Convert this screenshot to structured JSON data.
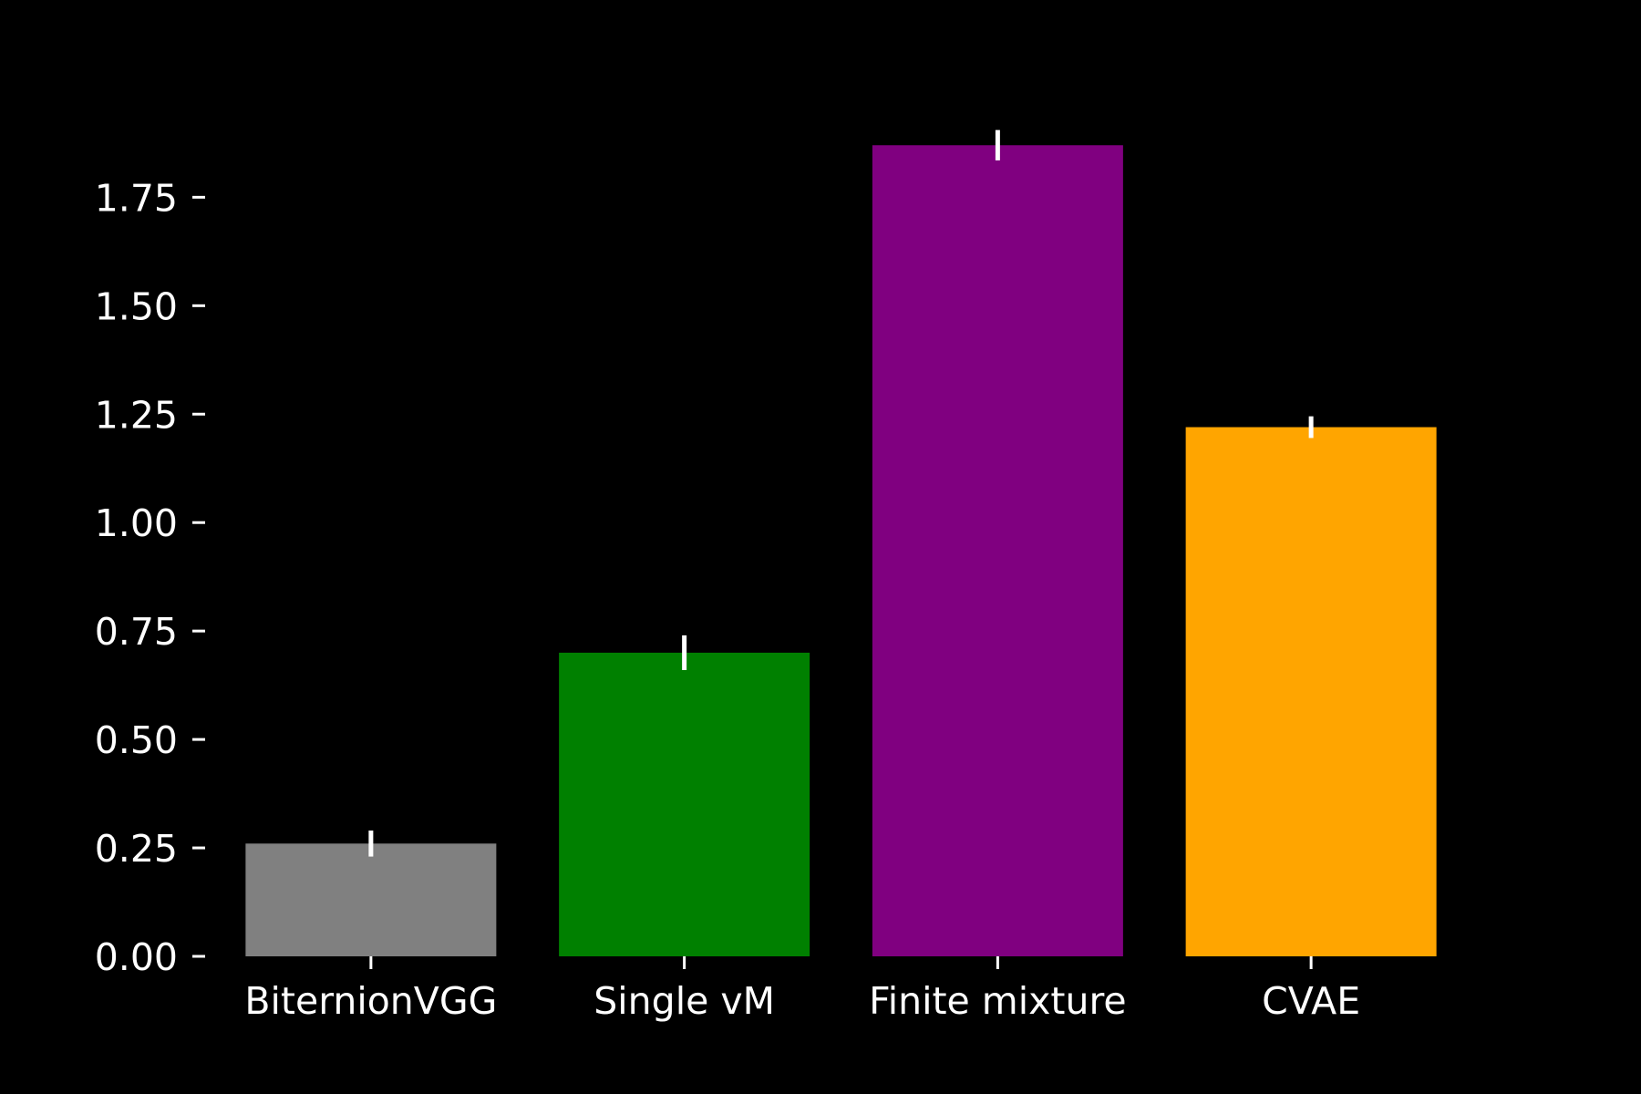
{
  "chart_data": {
    "type": "bar",
    "title": "",
    "xlabel": "",
    "ylabel": "",
    "categories": [
      "BiternionVGG",
      "Single vM",
      "Finite mixture",
      "CVAE"
    ],
    "values": [
      0.26,
      0.7,
      1.87,
      1.22
    ],
    "errors": [
      0.03,
      0.04,
      0.035,
      0.025
    ],
    "colors": [
      "#808080",
      "#008000",
      "#800080",
      "#ffa500"
    ],
    "error_color": "#ffffff",
    "background": "#000000",
    "ylim": [
      0,
      1.9
    ],
    "yticks": [
      0.0,
      0.25,
      0.5,
      0.75,
      1.0,
      1.25,
      1.5,
      1.75
    ],
    "ytick_labels": [
      "0.00",
      "0.25",
      "0.50",
      "0.75",
      "1.00",
      "1.25",
      "1.50",
      "1.75"
    ],
    "grid": false,
    "legend": "none"
  }
}
